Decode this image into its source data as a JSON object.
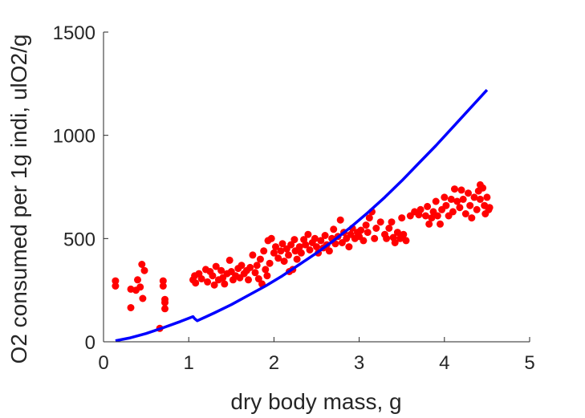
{
  "chart_data": {
    "type": "scatter",
    "xlabel": "dry body mass, g",
    "ylabel": "O2 consumed per 1g indi, ulO2/g",
    "xlim": [
      0,
      5
    ],
    "ylim": [
      0,
      1500
    ],
    "x_ticks": [
      0,
      1,
      2,
      3,
      4,
      5
    ],
    "y_ticks": [
      0,
      500,
      1000,
      1500
    ],
    "x_tick_labels": [
      "0",
      "1",
      "2",
      "3",
      "4",
      "5"
    ],
    "y_tick_labels": [
      "0",
      "500",
      "1000",
      "1500"
    ],
    "grid": false,
    "legend": "none",
    "series": [
      {
        "kind": "scatter",
        "color": "#ff0000",
        "points": [
          [
            0.14,
            295
          ],
          [
            0.14,
            270
          ],
          [
            0.32,
            255
          ],
          [
            0.32,
            165
          ],
          [
            0.38,
            250
          ],
          [
            0.4,
            300
          ],
          [
            0.43,
            265
          ],
          [
            0.45,
            375
          ],
          [
            0.46,
            210
          ],
          [
            0.48,
            345
          ],
          [
            0.66,
            65
          ],
          [
            0.7,
            295
          ],
          [
            0.7,
            270
          ],
          [
            0.72,
            160
          ],
          [
            0.72,
            190
          ],
          [
            0.72,
            205
          ],
          [
            1.05,
            300
          ],
          [
            1.07,
            320
          ],
          [
            1.08,
            285
          ],
          [
            1.12,
            330
          ],
          [
            1.15,
            305
          ],
          [
            1.2,
            350
          ],
          [
            1.22,
            290
          ],
          [
            1.25,
            340
          ],
          [
            1.28,
            320
          ],
          [
            1.3,
            275
          ],
          [
            1.32,
            365
          ],
          [
            1.35,
            300
          ],
          [
            1.38,
            345
          ],
          [
            1.4,
            310
          ],
          [
            1.42,
            280
          ],
          [
            1.45,
            330
          ],
          [
            1.48,
            395
          ],
          [
            1.5,
            340
          ],
          [
            1.52,
            300
          ],
          [
            1.55,
            320
          ],
          [
            1.58,
            355
          ],
          [
            1.6,
            310
          ],
          [
            1.62,
            370
          ],
          [
            1.65,
            330
          ],
          [
            1.68,
            345
          ],
          [
            1.7,
            300
          ],
          [
            1.72,
            360
          ],
          [
            1.75,
            420
          ],
          [
            1.78,
            335
          ],
          [
            1.8,
            370
          ],
          [
            1.82,
            305
          ],
          [
            1.84,
            400
          ],
          [
            1.86,
            280
          ],
          [
            1.88,
            440
          ],
          [
            1.9,
            350
          ],
          [
            1.92,
            320
          ],
          [
            1.93,
            490
          ],
          [
            1.95,
            380
          ],
          [
            1.97,
            500
          ],
          [
            2.0,
            430
          ],
          [
            2.02,
            460
          ],
          [
            2.05,
            405
          ],
          [
            2.08,
            440
          ],
          [
            2.1,
            475
          ],
          [
            2.12,
            390
          ],
          [
            2.15,
            450
          ],
          [
            2.17,
            420
          ],
          [
            2.18,
            340
          ],
          [
            2.2,
            470
          ],
          [
            2.22,
            350
          ],
          [
            2.24,
            495
          ],
          [
            2.25,
            440
          ],
          [
            2.27,
            400
          ],
          [
            2.3,
            460
          ],
          [
            2.32,
            430
          ],
          [
            2.35,
            495
          ],
          [
            2.37,
            470
          ],
          [
            2.4,
            520
          ],
          [
            2.42,
            445
          ],
          [
            2.45,
            480
          ],
          [
            2.48,
            500
          ],
          [
            2.5,
            460
          ],
          [
            2.52,
            430
          ],
          [
            2.55,
            490
          ],
          [
            2.58,
            455
          ],
          [
            2.6,
            515
          ],
          [
            2.62,
            470
          ],
          [
            2.65,
            440
          ],
          [
            2.68,
            500
          ],
          [
            2.7,
            545
          ],
          [
            2.72,
            475
          ],
          [
            2.75,
            510
          ],
          [
            2.78,
            590
          ],
          [
            2.8,
            480
          ],
          [
            2.82,
            530
          ],
          [
            2.85,
            500
          ],
          [
            2.88,
            460
          ],
          [
            2.9,
            520
          ],
          [
            2.92,
            550
          ],
          [
            2.95,
            500
          ],
          [
            2.98,
            530
          ],
          [
            3.0,
            510
          ],
          [
            3.02,
            540
          ],
          [
            3.05,
            490
          ],
          [
            3.08,
            565
          ],
          [
            3.1,
            530
          ],
          [
            3.12,
            600
          ],
          [
            3.15,
            630
          ],
          [
            3.18,
            500
          ],
          [
            3.2,
            550
          ],
          [
            3.25,
            580
          ],
          [
            3.3,
            520
          ],
          [
            3.32,
            500
          ],
          [
            3.35,
            550
          ],
          [
            3.38,
            580
          ],
          [
            3.4,
            505
          ],
          [
            3.42,
            480
          ],
          [
            3.45,
            530
          ],
          [
            3.48,
            500
          ],
          [
            3.5,
            600
          ],
          [
            3.52,
            520
          ],
          [
            3.55,
            490
          ],
          [
            3.6,
            610
          ],
          [
            3.65,
            630
          ],
          [
            3.7,
            615
          ],
          [
            3.72,
            640
          ],
          [
            3.78,
            610
          ],
          [
            3.8,
            655
          ],
          [
            3.82,
            570
          ],
          [
            3.85,
            600
          ],
          [
            3.87,
            630
          ],
          [
            3.9,
            680
          ],
          [
            3.92,
            610
          ],
          [
            3.95,
            570
          ],
          [
            3.97,
            640
          ],
          [
            4.0,
            700
          ],
          [
            4.02,
            660
          ],
          [
            4.05,
            610
          ],
          [
            4.08,
            690
          ],
          [
            4.1,
            630
          ],
          [
            4.12,
            740
          ],
          [
            4.15,
            680
          ],
          [
            4.18,
            650
          ],
          [
            4.2,
            735
          ],
          [
            4.22,
            690
          ],
          [
            4.25,
            620
          ],
          [
            4.28,
            720
          ],
          [
            4.3,
            660
          ],
          [
            4.32,
            600
          ],
          [
            4.35,
            700
          ],
          [
            4.38,
            640
          ],
          [
            4.4,
            730
          ],
          [
            4.42,
            690
          ],
          [
            4.45,
            745
          ],
          [
            4.47,
            660
          ],
          [
            4.48,
            620
          ],
          [
            4.5,
            700
          ],
          [
            4.52,
            640
          ],
          [
            4.53,
            650
          ],
          [
            4.42,
            760
          ]
        ]
      },
      {
        "kind": "line",
        "color": "#0000ff",
        "points": [
          [
            0.14,
            5
          ],
          [
            0.3,
            18
          ],
          [
            0.5,
            40
          ],
          [
            0.7,
            68
          ],
          [
            0.9,
            98
          ],
          [
            1.05,
            122
          ],
          [
            1.07,
            112
          ],
          [
            1.1,
            102
          ],
          [
            1.3,
            140
          ],
          [
            1.5,
            180
          ],
          [
            1.7,
            225
          ],
          [
            1.9,
            270
          ],
          [
            2.1,
            320
          ],
          [
            2.3,
            375
          ],
          [
            2.5,
            430
          ],
          [
            2.7,
            490
          ],
          [
            2.9,
            555
          ],
          [
            3.1,
            625
          ],
          [
            3.3,
            700
          ],
          [
            3.5,
            780
          ],
          [
            3.7,
            865
          ],
          [
            3.9,
            950
          ],
          [
            4.1,
            1040
          ],
          [
            4.3,
            1130
          ],
          [
            4.5,
            1220
          ]
        ]
      }
    ]
  }
}
